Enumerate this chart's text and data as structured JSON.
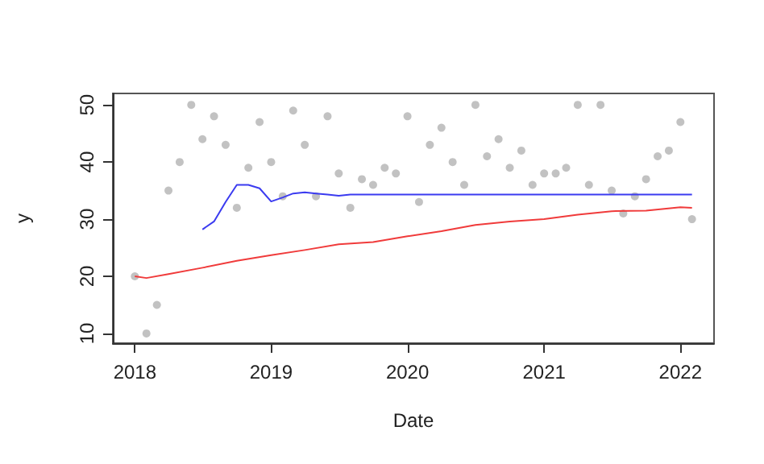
{
  "chart_data": {
    "type": "scatter",
    "xlabel": "Date",
    "ylabel": "y",
    "xlim": [
      "2017-11-03",
      "2022-04-01"
    ],
    "ylim": [
      8.3,
      52
    ],
    "xticks": [
      {
        "value": "2018-01-01",
        "label": "2018"
      },
      {
        "value": "2019-01-01",
        "label": "2019"
      },
      {
        "value": "2020-01-01",
        "label": "2020"
      },
      {
        "value": "2021-01-01",
        "label": "2021"
      },
      {
        "value": "2022-01-01",
        "label": "2022"
      }
    ],
    "yticks": [
      10,
      20,
      30,
      40,
      50
    ],
    "grid": false,
    "series": [
      {
        "color": "#b3b3b3",
        "marker": "circle",
        "x": [
          "2018-01",
          "2018-02",
          "2018-03",
          "2018-04",
          "2018-05",
          "2018-06",
          "2018-07",
          "2018-08",
          "2018-09",
          "2018-10",
          "2018-11",
          "2018-12",
          "2019-01",
          "2019-02",
          "2019-03",
          "2019-04",
          "2019-05",
          "2019-06",
          "2019-07",
          "2019-08",
          "2019-09",
          "2019-10",
          "2019-11",
          "2019-12",
          "2020-01",
          "2020-02",
          "2020-03",
          "2020-04",
          "2020-05",
          "2020-06",
          "2020-07",
          "2020-08",
          "2020-09",
          "2020-10",
          "2020-11",
          "2020-12",
          "2021-01",
          "2021-02",
          "2021-03",
          "2021-04",
          "2021-05",
          "2021-06",
          "2021-07",
          "2021-08",
          "2021-09",
          "2021-10",
          "2021-11",
          "2021-12",
          "2022-01",
          "2022-02"
        ],
        "values": [
          20,
          10,
          15,
          35,
          40,
          50,
          44,
          48,
          43,
          32,
          39,
          47,
          40,
          34,
          49,
          43,
          34,
          48,
          38,
          32,
          37,
          36,
          39,
          38,
          48,
          33,
          43,
          46,
          40,
          36,
          50,
          41,
          44,
          39,
          42,
          36,
          38,
          38,
          39,
          50,
          36,
          50,
          35,
          31,
          34,
          37,
          41,
          42,
          47,
          30
        ]
      },
      {
        "type": "line",
        "color": "#3b3bf0",
        "marker": "none",
        "line_style": "solid",
        "x": [
          "2018-07",
          "2018-08",
          "2018-09",
          "2018-10",
          "2018-11",
          "2018-12",
          "2019-01",
          "2019-02",
          "2019-03",
          "2019-04",
          "2019-05",
          "2019-06",
          "2019-07",
          "2019-08",
          "2020-01",
          "2021-01",
          "2022-02"
        ],
        "values": [
          28.2,
          29.6,
          33,
          36,
          36,
          35.4,
          33.1,
          33.8,
          34.5,
          34.7,
          34.5,
          34.3,
          34.1,
          34.3,
          34.3,
          34.3,
          34.3
        ]
      },
      {
        "type": "line",
        "color": "#f03b3b",
        "marker": "none",
        "line_style": "solid",
        "x": [
          "2018-01",
          "2018-02",
          "2018-04",
          "2018-07",
          "2018-10",
          "2019-01",
          "2019-04",
          "2019-07",
          "2019-10",
          "2020-01",
          "2020-04",
          "2020-07",
          "2020-10",
          "2021-01",
          "2021-04",
          "2021-07",
          "2021-10",
          "2022-01",
          "2022-02"
        ],
        "values": [
          20,
          19.7,
          20.4,
          21.5,
          22.7,
          23.7,
          24.6,
          25.6,
          26,
          27,
          27.9,
          29,
          29.6,
          30,
          30.8,
          31.4,
          31.5,
          32.1,
          32
        ]
      }
    ]
  }
}
